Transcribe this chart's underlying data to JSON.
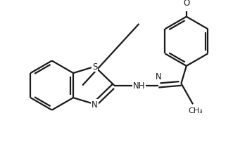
{
  "bg_color": "#ffffff",
  "line_color": "#1a1a1a",
  "line_width": 1.6,
  "font_size": 8.5,
  "figsize": [
    3.58,
    2.26
  ],
  "dpi": 100,
  "xlim": [
    0,
    358
  ],
  "ylim": [
    0,
    226
  ]
}
